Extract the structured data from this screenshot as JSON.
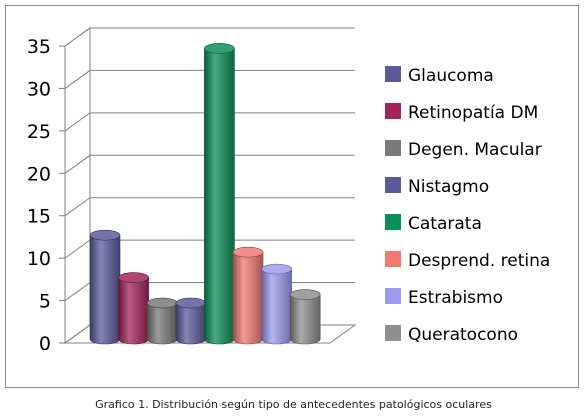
{
  "caption": "Grafico 1. Distribución según tipo de antecedentes patológicos oculares",
  "chart_data": {
    "type": "bar",
    "title": "",
    "xlabel": "",
    "ylabel": "",
    "ylim": [
      0,
      35
    ],
    "yticks": [
      "0",
      "5",
      "10",
      "15",
      "20",
      "25",
      "30",
      "35"
    ],
    "grid": true,
    "legend_position": "right",
    "categories": [
      "Glaucoma",
      "Retinopatía DM",
      "Degen. Macular",
      "Nistagmo",
      "Catarata",
      "Desprend. retina",
      "Estrabismo",
      "Queratocono"
    ],
    "values": [
      12,
      7,
      4,
      4,
      34,
      10,
      8,
      5
    ],
    "colors": [
      "#5b5b9b",
      "#a3245a",
      "#7a7a7a",
      "#5b5b9b",
      "#0e8f5a",
      "#f07a72",
      "#9d9cf0",
      "#8f8f8f"
    ]
  }
}
